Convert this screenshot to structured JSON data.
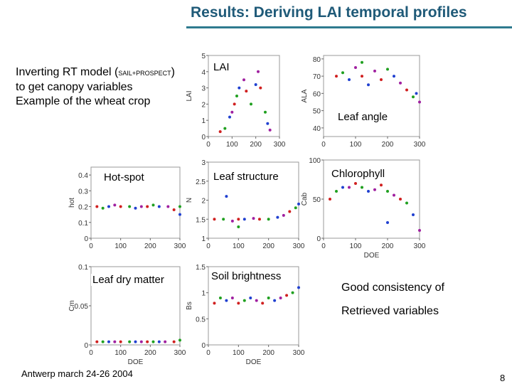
{
  "header": {
    "title": "Results: Deriving LAI temporal profiles"
  },
  "intro": {
    "line1_start": "Inverting RT model (",
    "line1_small": "SAIL+PROSPECT",
    "line1_end": ")",
    "line2": "to get canopy variables",
    "line3": "Example of the wheat crop"
  },
  "conclusion": {
    "line1": "Good consistency of",
    "line2": "Retrieved variables"
  },
  "footer": "Antwerp march 24-26 2004",
  "page_number": "8",
  "marker_colors": [
    "#d02020",
    "#20a020",
    "#2040d0",
    "#a020a0"
  ],
  "chart_data": [
    {
      "type": "scatter",
      "annotation": "LAI",
      "ylabel": "LAI",
      "xlim": [
        0,
        300
      ],
      "xticks": [
        0,
        100,
        200,
        300
      ],
      "ylim": [
        0,
        5
      ],
      "yticks": [
        0,
        1,
        2,
        3,
        4,
        5
      ],
      "x": [
        50,
        70,
        90,
        100,
        110,
        120,
        130,
        150,
        160,
        180,
        200,
        210,
        220,
        240,
        250,
        260
      ],
      "y": [
        0.3,
        0.5,
        1.2,
        1.5,
        2,
        2.5,
        3,
        3.5,
        2.8,
        2,
        3.2,
        4,
        3,
        1.5,
        0.8,
        0.4
      ]
    },
    {
      "type": "scatter",
      "annotation": "Leaf angle",
      "ylabel": "ALA",
      "xlim": [
        0,
        300
      ],
      "xticks": [
        0,
        100,
        200,
        300
      ],
      "ylim": [
        35,
        82
      ],
      "yticks": [
        40,
        50,
        60,
        70,
        80
      ],
      "x": [
        40,
        60,
        80,
        100,
        120,
        120,
        140,
        160,
        180,
        200,
        220,
        240,
        260,
        280,
        290,
        300
      ],
      "y": [
        70,
        72,
        68,
        75,
        70,
        78,
        65,
        73,
        68,
        74,
        70,
        66,
        62,
        58,
        60,
        55
      ]
    },
    {
      "type": "scatter",
      "annotation": "Hot-spot",
      "ylabel": "hot",
      "xlim": [
        0,
        300
      ],
      "xticks": [
        0,
        100,
        200,
        300
      ],
      "ylim": [
        0,
        0.45
      ],
      "yticks": [
        0,
        0.1,
        0.2,
        0.3,
        0.4
      ],
      "x": [
        20,
        40,
        60,
        80,
        100,
        130,
        150,
        170,
        190,
        210,
        230,
        260,
        280,
        300,
        300
      ],
      "y": [
        0.2,
        0.19,
        0.2,
        0.21,
        0.2,
        0.2,
        0.19,
        0.2,
        0.2,
        0.21,
        0.2,
        0.2,
        0.18,
        0.2,
        0.15
      ]
    },
    {
      "type": "scatter",
      "annotation": "Leaf structure",
      "ylabel": "N",
      "xlim": [
        0,
        300
      ],
      "xticks": [
        0,
        100,
        200,
        300
      ],
      "ylim": [
        1,
        3
      ],
      "yticks": [
        1,
        1.5,
        2,
        2.5,
        3
      ],
      "x": [
        20,
        50,
        60,
        80,
        100,
        100,
        120,
        150,
        170,
        200,
        230,
        250,
        270,
        290,
        300
      ],
      "y": [
        1.5,
        1.5,
        2.1,
        1.45,
        1.5,
        1.3,
        1.5,
        1.52,
        1.5,
        1.5,
        1.55,
        1.6,
        1.7,
        1.8,
        1.9
      ]
    },
    {
      "type": "scatter",
      "annotation": "Chlorophyll",
      "ylabel": "Cab",
      "xlabel": "DOE",
      "xlim": [
        0,
        300
      ],
      "xticks": [
        0,
        100,
        200,
        300
      ],
      "ylim": [
        0,
        100
      ],
      "yticks": [
        0,
        50,
        100
      ],
      "x": [
        20,
        40,
        60,
        80,
        100,
        120,
        140,
        160,
        180,
        200,
        200,
        220,
        240,
        260,
        280,
        300
      ],
      "y": [
        50,
        60,
        65,
        65,
        70,
        65,
        60,
        62,
        68,
        60,
        20,
        55,
        50,
        45,
        30,
        10
      ]
    },
    {
      "type": "scatter",
      "annotation": "Leaf dry matter",
      "ylabel": "Cm",
      "xlabel": "DOE",
      "xlim": [
        0,
        300
      ],
      "xticks": [
        0,
        100,
        200,
        300
      ],
      "ylim": [
        0,
        0.1
      ],
      "yticks": [
        0,
        0.05,
        0.1
      ],
      "x": [
        20,
        40,
        60,
        80,
        100,
        130,
        150,
        170,
        190,
        210,
        230,
        250,
        280,
        300
      ],
      "y": [
        0.004,
        0.004,
        0.004,
        0.004,
        0.004,
        0.004,
        0.004,
        0.004,
        0.004,
        0.004,
        0.004,
        0.004,
        0.004,
        0.006
      ]
    },
    {
      "type": "scatter",
      "annotation": "Soil brightness",
      "ylabel": "Bs",
      "xlabel": "DOE",
      "xlim": [
        0,
        300
      ],
      "xticks": [
        0,
        100,
        200,
        300
      ],
      "ylim": [
        0,
        1.5
      ],
      "yticks": [
        0,
        0.5,
        1,
        1.5
      ],
      "x": [
        20,
        40,
        60,
        80,
        100,
        120,
        140,
        160,
        180,
        200,
        220,
        240,
        260,
        280,
        300
      ],
      "y": [
        0.8,
        0.9,
        0.85,
        0.9,
        0.8,
        0.85,
        0.9,
        0.85,
        0.8,
        0.9,
        0.85,
        0.9,
        0.95,
        1,
        1.1
      ]
    }
  ]
}
